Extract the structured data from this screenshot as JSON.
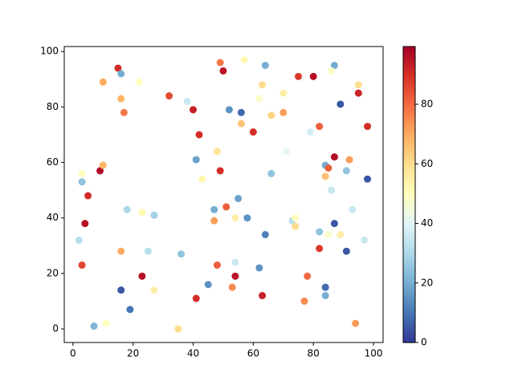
{
  "chart_data": {
    "type": "scatter",
    "colormap": "RdYlBu_r",
    "x": [
      15,
      16,
      10,
      22,
      16,
      17,
      32,
      38,
      40,
      42,
      49,
      50,
      57,
      64,
      63,
      62,
      70,
      52,
      56,
      56,
      60,
      66,
      70,
      75,
      80,
      87,
      86,
      79,
      82,
      89,
      95,
      95,
      98,
      71,
      48,
      41,
      43,
      49,
      66,
      87,
      92,
      84,
      85,
      84,
      86,
      91,
      98,
      3,
      3,
      9,
      10,
      5,
      18,
      23,
      27,
      4,
      2,
      3,
      16,
      25,
      36,
      47,
      51,
      55,
      47,
      54,
      58,
      64,
      73,
      74,
      74,
      82,
      85,
      87,
      89,
      93,
      97,
      91,
      82,
      78,
      84,
      84,
      77,
      94,
      62,
      63,
      54,
      54,
      53,
      48,
      45,
      41,
      35,
      27,
      23,
      16,
      19,
      7,
      11
    ],
    "y": [
      94,
      92,
      89,
      89,
      83,
      78,
      84,
      82,
      79,
      70,
      96,
      93,
      97,
      95,
      88,
      83,
      85,
      79,
      78,
      74,
      71,
      77,
      78,
      91,
      91,
      95,
      93,
      71,
      73,
      81,
      88,
      85,
      73,
      64,
      64,
      61,
      54,
      57,
      56,
      62,
      61,
      59,
      58,
      55,
      50,
      57,
      54,
      56,
      53,
      57,
      59,
      48,
      43,
      42,
      41,
      38,
      32,
      23,
      28,
      28,
      27,
      43,
      44,
      47,
      39,
      40,
      40,
      34,
      39,
      40,
      37,
      35,
      34,
      38,
      34,
      43,
      32,
      28,
      29,
      19,
      15,
      12,
      10,
      2,
      22,
      12,
      24,
      19,
      15,
      23,
      16,
      11,
      0,
      14,
      19,
      14,
      7,
      1,
      2
    ],
    "c": [
      90,
      20,
      70,
      50,
      68,
      78,
      85,
      35,
      93,
      90,
      78,
      95,
      52,
      20,
      60,
      48,
      55,
      15,
      8,
      65,
      90,
      62,
      72,
      88,
      96,
      20,
      48,
      38,
      82,
      5,
      60,
      92,
      90,
      42,
      58,
      18,
      53,
      90,
      25,
      97,
      72,
      20,
      82,
      66,
      35,
      25,
      5,
      50,
      25,
      97,
      68,
      90,
      30,
      52,
      28,
      96,
      32,
      86,
      70,
      32,
      25,
      20,
      82,
      18,
      72,
      55,
      15,
      12,
      32,
      50,
      60,
      25,
      48,
      5,
      55,
      35,
      35,
      5,
      88,
      80,
      8,
      20,
      75,
      72,
      15,
      93,
      35,
      95,
      75,
      82,
      15,
      90,
      60,
      55,
      96,
      5,
      10,
      22,
      50
    ],
    "xlim": [
      -2.9,
      103.2
    ],
    "ylim": [
      -4.9,
      101.8
    ],
    "clim": [
      0,
      99.4
    ],
    "xticks": [
      0,
      20,
      40,
      60,
      80,
      100
    ],
    "yticks": [
      0,
      20,
      40,
      60,
      80,
      100
    ],
    "cticks": [
      0,
      20,
      40,
      60,
      80
    ]
  }
}
